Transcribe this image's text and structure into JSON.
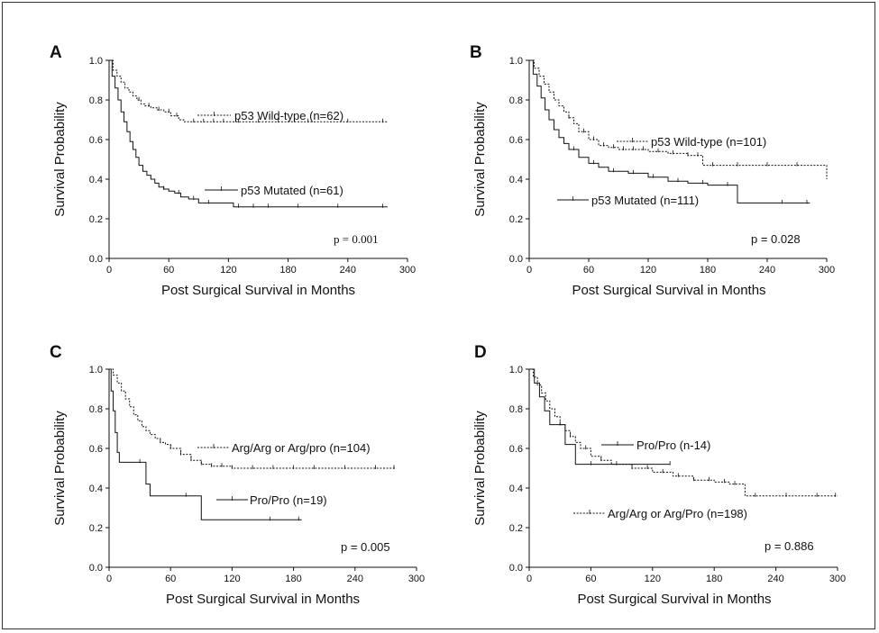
{
  "chart_data": [
    {
      "panel": "A",
      "type": "line",
      "xlabel": "Post Surgical Survival in Months",
      "ylabel": "Survival Probability",
      "xlim": [
        0,
        300
      ],
      "ylim": [
        0,
        1.0
      ],
      "xticks": [
        "0",
        "60",
        "120",
        "180",
        "240",
        "300"
      ],
      "yticks": [
        "0.0",
        "0.2",
        "0.4",
        "0.6",
        "0.8",
        "1.0"
      ],
      "p_value": "p = 0.001",
      "series": [
        {
          "name": "p53 Wild-type (n=62)",
          "style": "dashed",
          "x": [
            0,
            4,
            8,
            12,
            16,
            20,
            24,
            28,
            32,
            36,
            42,
            48,
            55,
            62,
            70,
            75,
            80,
            100,
            140,
            200,
            280
          ],
          "y": [
            1.0,
            0.95,
            0.92,
            0.89,
            0.86,
            0.84,
            0.82,
            0.8,
            0.78,
            0.77,
            0.76,
            0.75,
            0.74,
            0.72,
            0.7,
            0.69,
            0.69,
            0.69,
            0.69,
            0.69,
            0.69
          ],
          "censor_x": [
            30,
            40,
            50,
            60,
            68,
            85,
            95,
            105,
            115,
            130,
            150,
            170,
            200,
            240,
            275
          ]
        },
        {
          "name": "p53 Mutated (n=61)",
          "style": "solid",
          "x": [
            0,
            3,
            6,
            9,
            12,
            15,
            18,
            21,
            24,
            27,
            30,
            34,
            38,
            42,
            46,
            50,
            55,
            60,
            66,
            72,
            80,
            90,
            100,
            125,
            150,
            200,
            280
          ],
          "y": [
            1.0,
            0.92,
            0.86,
            0.8,
            0.74,
            0.69,
            0.64,
            0.59,
            0.55,
            0.51,
            0.47,
            0.44,
            0.42,
            0.4,
            0.38,
            0.36,
            0.35,
            0.34,
            0.33,
            0.31,
            0.3,
            0.28,
            0.28,
            0.26,
            0.26,
            0.26,
            0.26
          ],
          "censor_x": [
            55,
            70,
            85,
            100,
            130,
            145,
            160,
            190,
            230,
            275
          ]
        }
      ]
    },
    {
      "panel": "B",
      "type": "line",
      "xlabel": "Post Surgical Survival in Months",
      "ylabel": "Survival Probability",
      "xlim": [
        0,
        300
      ],
      "ylim": [
        0,
        1.0
      ],
      "xticks": [
        "0",
        "60",
        "120",
        "180",
        "240",
        "300"
      ],
      "yticks": [
        "0.0",
        "0.2",
        "0.4",
        "0.6",
        "0.8",
        "1.0"
      ],
      "p_value": "p = 0.028",
      "series": [
        {
          "name": "p53 Wild-type (n=101)",
          "style": "dashed",
          "x": [
            0,
            5,
            10,
            15,
            20,
            25,
            30,
            35,
            40,
            45,
            50,
            60,
            70,
            80,
            90,
            100,
            120,
            140,
            160,
            175,
            200,
            250,
            300
          ],
          "y": [
            1.0,
            0.96,
            0.92,
            0.88,
            0.84,
            0.8,
            0.77,
            0.74,
            0.71,
            0.68,
            0.64,
            0.6,
            0.57,
            0.56,
            0.55,
            0.55,
            0.54,
            0.53,
            0.52,
            0.47,
            0.47,
            0.47,
            0.4
          ],
          "censor_x": [
            40,
            55,
            65,
            75,
            85,
            95,
            105,
            115,
            130,
            145,
            160,
            170,
            185,
            210,
            240,
            270
          ]
        },
        {
          "name": "p53 Mutated (n=111)",
          "style": "solid",
          "x": [
            0,
            4,
            8,
            12,
            16,
            20,
            25,
            30,
            35,
            40,
            50,
            60,
            70,
            80,
            100,
            120,
            140,
            160,
            180,
            210,
            250,
            283
          ],
          "y": [
            1.0,
            0.93,
            0.87,
            0.81,
            0.75,
            0.7,
            0.65,
            0.61,
            0.58,
            0.55,
            0.51,
            0.48,
            0.46,
            0.44,
            0.43,
            0.41,
            0.39,
            0.38,
            0.37,
            0.28,
            0.28,
            0.28
          ],
          "censor_x": [
            45,
            65,
            85,
            105,
            125,
            150,
            175,
            200,
            255,
            280
          ]
        }
      ]
    },
    {
      "panel": "C",
      "type": "line",
      "xlabel": "Post Surgical Survival in Months",
      "ylabel": "Survival Probability",
      "xlim": [
        0,
        300
      ],
      "ylim": [
        0,
        1.0
      ],
      "xticks": [
        "0",
        "60",
        "120",
        "180",
        "240",
        "300"
      ],
      "yticks": [
        "0.0",
        "0.2",
        "0.4",
        "0.6",
        "0.8",
        "1.0"
      ],
      "p_value": "p = 0.005",
      "series": [
        {
          "name": "Arg/Arg or Arg/pro (n=104)",
          "style": "dashed",
          "x": [
            0,
            4,
            8,
            12,
            16,
            20,
            24,
            28,
            32,
            36,
            40,
            45,
            50,
            55,
            60,
            70,
            80,
            90,
            100,
            120,
            150,
            200,
            280
          ],
          "y": [
            1.0,
            0.97,
            0.93,
            0.89,
            0.85,
            0.81,
            0.77,
            0.74,
            0.71,
            0.69,
            0.67,
            0.65,
            0.63,
            0.62,
            0.6,
            0.57,
            0.54,
            0.52,
            0.51,
            0.5,
            0.5,
            0.5,
            0.5
          ],
          "censor_x": [
            50,
            60,
            70,
            80,
            90,
            100,
            110,
            120,
            140,
            160,
            180,
            200,
            230,
            260,
            278
          ]
        },
        {
          "name": "Pro/Pro (n=19)",
          "style": "solid",
          "x": [
            0,
            2,
            4,
            6,
            8,
            10,
            20,
            36,
            40,
            60,
            75,
            90,
            100,
            120,
            188
          ],
          "y": [
            1.0,
            0.89,
            0.79,
            0.68,
            0.58,
            0.53,
            0.53,
            0.42,
            0.36,
            0.36,
            0.36,
            0.24,
            0.24,
            0.24,
            0.24
          ],
          "censor_x": [
            30,
            75,
            157,
            185
          ]
        }
      ]
    },
    {
      "panel": "D",
      "type": "line",
      "xlabel": "Post Surgical Survival in Months",
      "ylabel": "Survival Probability",
      "xlim": [
        0,
        300
      ],
      "ylim": [
        0,
        1.0
      ],
      "xticks": [
        "0",
        "60",
        "120",
        "180",
        "240",
        "300"
      ],
      "yticks": [
        "0.0",
        "0.2",
        "0.4",
        "0.6",
        "0.8",
        "1.0"
      ],
      "p_value": "p = 0.886",
      "series": [
        {
          "name": "Pro/Pro (n-14)",
          "style": "solid",
          "x": [
            0,
            5,
            10,
            15,
            20,
            25,
            35,
            45,
            50,
            80,
            137
          ],
          "y": [
            1.0,
            0.93,
            0.86,
            0.79,
            0.72,
            0.72,
            0.62,
            0.52,
            0.52,
            0.52,
            0.52
          ],
          "censor_x": [
            30,
            60,
            137
          ]
        },
        {
          "name": "Arg/Arg or Arg/Pro (n=198)",
          "style": "dashed",
          "x": [
            0,
            4,
            8,
            12,
            16,
            20,
            25,
            30,
            35,
            40,
            45,
            50,
            60,
            70,
            80,
            100,
            120,
            140,
            160,
            180,
            195,
            210,
            240,
            300
          ],
          "y": [
            1.0,
            0.96,
            0.92,
            0.88,
            0.84,
            0.8,
            0.76,
            0.72,
            0.69,
            0.66,
            0.63,
            0.6,
            0.56,
            0.54,
            0.52,
            0.5,
            0.48,
            0.46,
            0.44,
            0.43,
            0.42,
            0.36,
            0.36,
            0.36
          ],
          "censor_x": [
            40,
            55,
            70,
            85,
            100,
            115,
            130,
            145,
            160,
            175,
            190,
            200,
            220,
            250,
            280,
            298
          ]
        }
      ]
    }
  ]
}
